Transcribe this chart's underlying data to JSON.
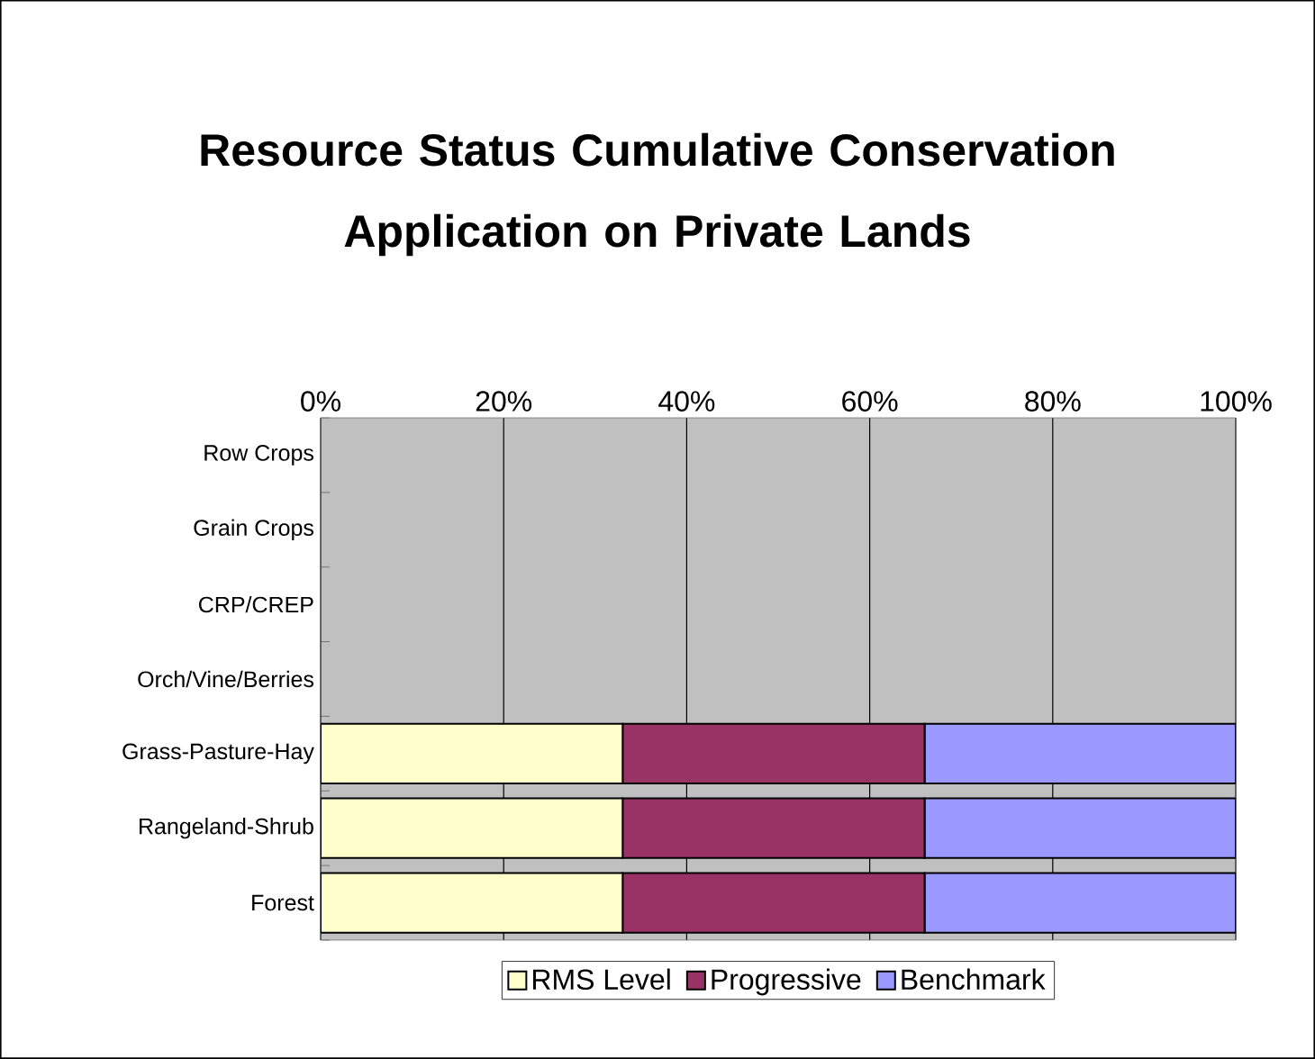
{
  "chart_data": {
    "type": "bar",
    "orientation": "horizontal",
    "stacked": true,
    "title": "Resource Status Cumulative Conservation Application on Private Lands",
    "categories": [
      "Row Crops",
      "Grain Crops",
      "CRP/CREP",
      "Orch/Vine/Berries",
      "Grass-Pasture-Hay",
      "Rangeland-Shrub",
      "Forest"
    ],
    "series": [
      {
        "name": "RMS Level",
        "color": "#ffffcc",
        "values": [
          null,
          null,
          null,
          null,
          33,
          33,
          33
        ]
      },
      {
        "name": "Progressive",
        "color": "#993366",
        "values": [
          null,
          null,
          null,
          null,
          33,
          33,
          33
        ]
      },
      {
        "name": "Benchmark",
        "color": "#9999ff",
        "values": [
          null,
          null,
          null,
          null,
          34,
          34,
          34
        ]
      }
    ],
    "xlim": [
      0,
      100
    ],
    "xticks": [
      {
        "value": 0,
        "label": "0%"
      },
      {
        "value": 20,
        "label": "20%"
      },
      {
        "value": 40,
        "label": "40%"
      },
      {
        "value": 60,
        "label": "60%"
      },
      {
        "value": 80,
        "label": "80%"
      },
      {
        "value": 100,
        "label": "100%"
      }
    ],
    "grid": "x",
    "legend": "bottom"
  }
}
